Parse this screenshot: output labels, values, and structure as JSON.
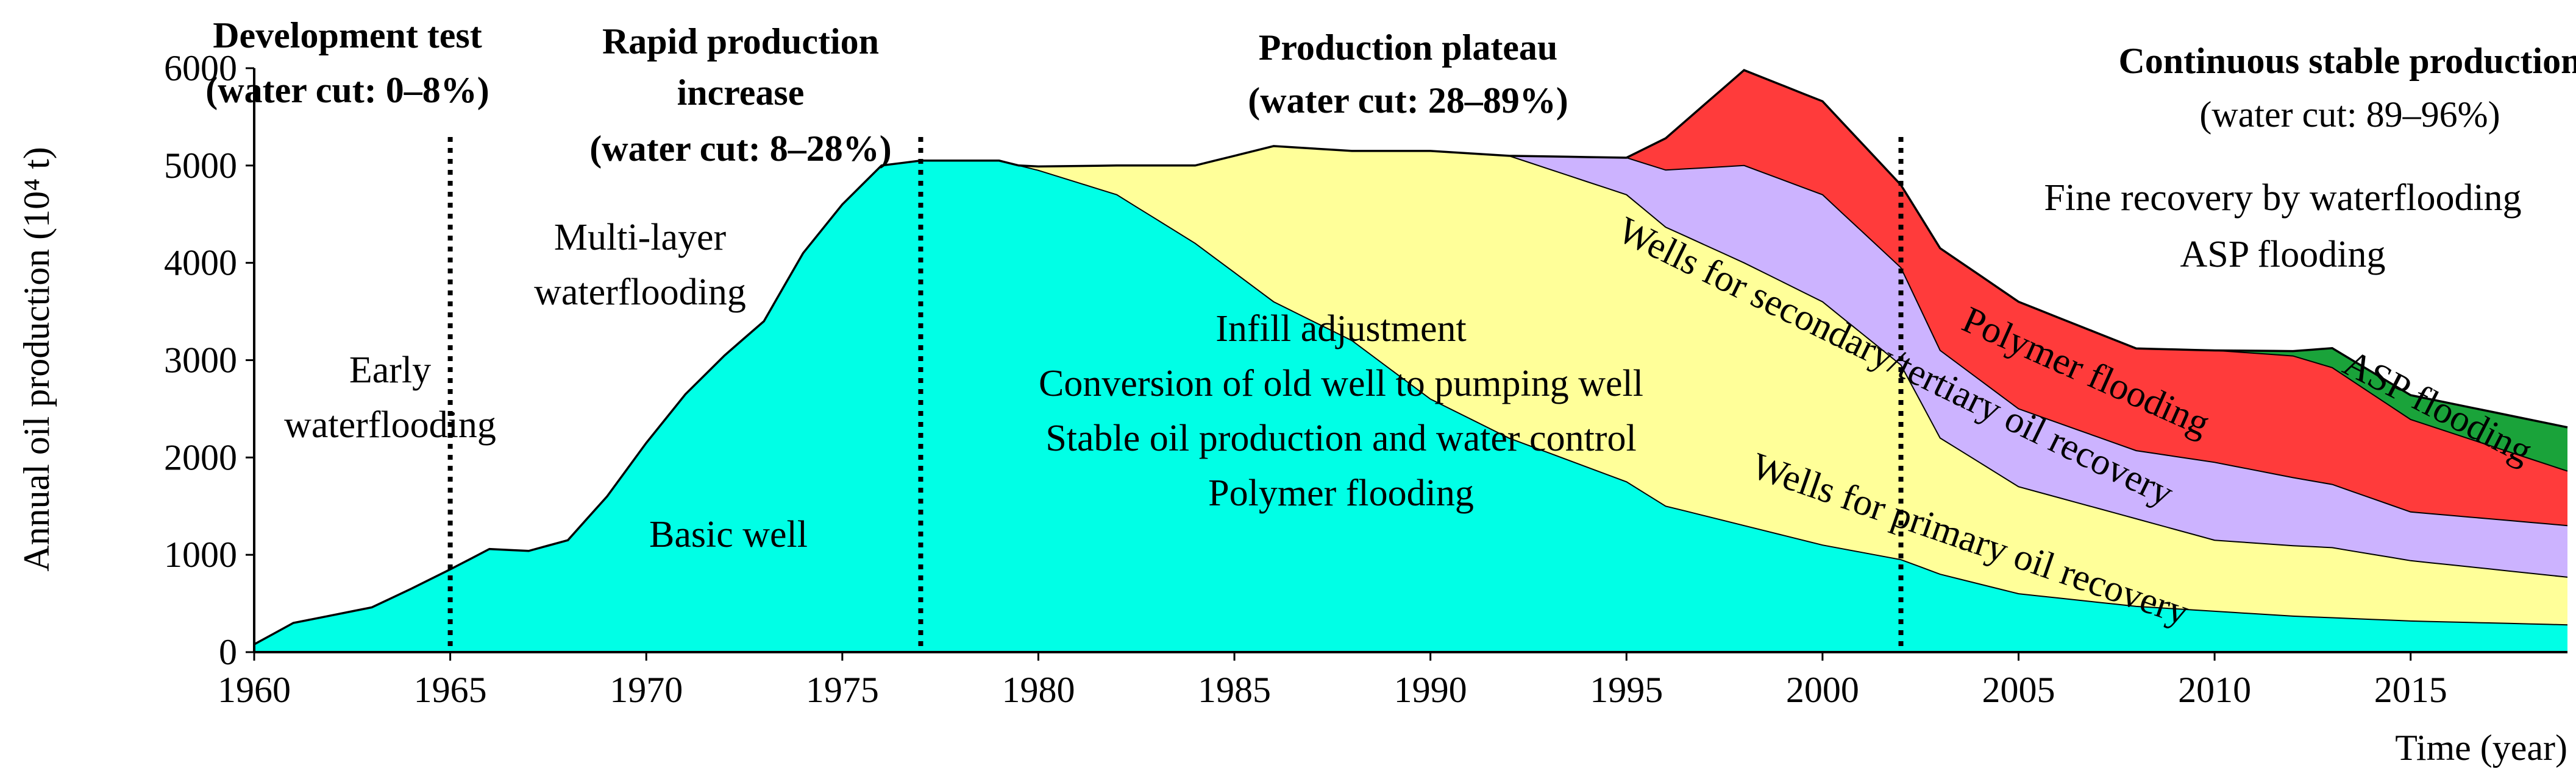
{
  "chart_data": {
    "type": "area",
    "stacked": true,
    "ylabel": "Annual oil production (10⁴ t)",
    "xlabel": "Time (year)",
    "xlim": [
      1960,
      2019
    ],
    "ylim": [
      0,
      6000
    ],
    "xticks": [
      1960,
      1965,
      1970,
      1975,
      1980,
      1985,
      1990,
      1995,
      2000,
      2005,
      2010,
      2015
    ],
    "yticks": [
      0,
      1000,
      2000,
      3000,
      4000,
      5000,
      6000
    ],
    "colors": {
      "basic": "#00FFE6",
      "infill": "#FFFF99",
      "secondary": "#CCB3FF",
      "polymer": "#FF3B3B",
      "asp": "#1AA33A",
      "outline": "#000000"
    },
    "series": [
      {
        "name": "Basic well",
        "key": "basic",
        "x": [
          1960,
          1961,
          1962,
          1963,
          1964,
          1965,
          1966,
          1967,
          1968,
          1969,
          1970,
          1971,
          1972,
          1973,
          1974,
          1975,
          1976,
          1977,
          1978,
          1979,
          1980,
          1982,
          1984,
          1986,
          1988,
          1990,
          1992,
          1995,
          1996,
          1998,
          2000,
          2002,
          2003,
          2004,
          2005,
          2008,
          2010,
          2012,
          2015,
          2019
        ],
        "values": [
          80,
          300,
          380,
          460,
          650,
          850,
          1060,
          1040,
          1150,
          1600,
          2150,
          2650,
          3050,
          3400,
          4100,
          4600,
          5000,
          5050,
          5050,
          5050,
          4950,
          4700,
          4200,
          3600,
          3200,
          2600,
          2200,
          1750,
          1500,
          1300,
          1100,
          950,
          800,
          700,
          600,
          470,
          420,
          370,
          320,
          280
        ]
      },
      {
        "name": "Wells for primary oil recovery",
        "key": "infill",
        "x": [
          1980,
          1982,
          1984,
          1986,
          1988,
          1990,
          1992,
          1995,
          1998,
          2000,
          2002,
          2003,
          2005,
          2008,
          2010,
          2013,
          2015,
          2019
        ],
        "values": [
          40,
          300,
          800,
          1600,
          1950,
          2550,
          2900,
          2950,
          2700,
          2500,
          2000,
          1400,
          1100,
          900,
          730,
          720,
          620,
          490
        ]
      },
      {
        "name": "Wells for secondary/tertiary oil recovery",
        "key": "secondary",
        "x": [
          1992,
          1995,
          1998,
          2000,
          2002,
          2003,
          2005,
          2008,
          2010,
          2013,
          2015,
          2019
        ],
        "values": [
          0,
          380,
          1000,
          1100,
          1000,
          900,
          800,
          700,
          800,
          650,
          500,
          530
        ]
      },
      {
        "name": "Polymer flooding",
        "key": "polymer",
        "x": [
          1995,
          1998,
          2000,
          2002,
          2003,
          2005,
          2008,
          2010,
          2012,
          2013,
          2015,
          2019
        ],
        "values": [
          0,
          980,
          960,
          850,
          1050,
          1100,
          1050,
          1150,
          1250,
          1200,
          950,
          560
        ]
      },
      {
        "name": "ASP flooding",
        "key": "asp",
        "x": [
          2008,
          2010,
          2012,
          2013,
          2015,
          2019
        ],
        "values": [
          0,
          0,
          50,
          200,
          250,
          450
        ]
      }
    ],
    "annotations": {
      "early_waterflooding": [
        "Early",
        "waterflooding"
      ],
      "multilayer_waterflooding": [
        "Multi-layer",
        "waterflooding"
      ],
      "basic_well": "Basic well",
      "infill_block": [
        "Infill adjustment",
        "Conversion of old well to pumping well",
        "Stable oil production and water control",
        "Polymer flooding"
      ],
      "fine_recovery": [
        "Fine recovery by waterflooding",
        "ASP flooding"
      ],
      "wells_secondary": "Wells for secondary/tertiary oil recovery",
      "polymer_flooding": "Polymer flooding",
      "asp_flooding": "ASP flooding",
      "wells_primary": "Wells for primary oil recovery"
    },
    "stages": [
      {
        "lines": [
          "Development test",
          "(water cut: 0–8%)"
        ],
        "bold": [
          true,
          true
        ]
      },
      {
        "lines": [
          "Rapid production",
          "increase",
          "(water cut: 8–28%)"
        ],
        "bold": [
          true,
          true,
          true
        ]
      },
      {
        "lines": [
          "Production plateau",
          "(water cut: 28–89%)"
        ],
        "bold": [
          true,
          true
        ]
      },
      {
        "lines": [
          "Continuous stable production",
          "(water cut: 89–96%)"
        ],
        "bold": [
          true,
          false
        ]
      }
    ],
    "stage_boundaries": [
      1965,
      1977,
      2002
    ]
  }
}
